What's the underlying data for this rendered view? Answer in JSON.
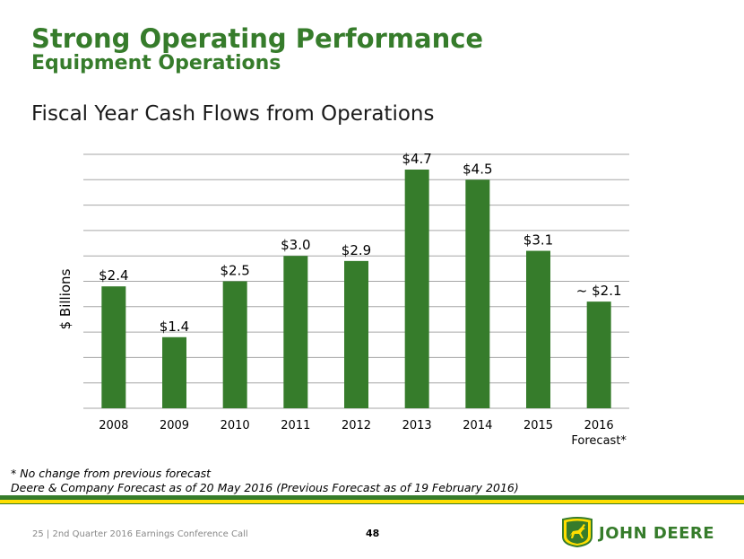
{
  "header": {
    "title": "Strong Operating Performance",
    "subtitle": "Equipment Operations",
    "chart_heading": "Fiscal Year Cash Flows from Operations"
  },
  "chart_data": {
    "type": "bar",
    "title": "Fiscal Year Cash Flows from Operations",
    "xlabel": "",
    "ylabel": "$ Billions",
    "ylim": [
      0,
      5
    ],
    "grid": true,
    "categories": [
      "2008",
      "2009",
      "2010",
      "2011",
      "2012",
      "2013",
      "2014",
      "2015",
      "2016\nForecast*"
    ],
    "values": [
      2.4,
      1.4,
      2.5,
      3.0,
      2.9,
      4.7,
      4.5,
      3.1,
      2.1
    ],
    "data_labels": [
      "$2.4",
      "$1.4",
      "$2.5",
      "$3.0",
      "$2.9",
      "$4.7",
      "$4.5",
      "$3.1",
      "~ $2.1"
    ],
    "bar_color": "#367c2b"
  },
  "notes": {
    "line1": "* No change from previous forecast",
    "line2": "Deere & Company Forecast as of 20 May 2016 (Previous Forecast as of 19 February 2016)"
  },
  "footer": {
    "slide_info": "25  |  2nd Quarter 2016 Earnings Conference Call",
    "page_number": "48",
    "brand": "JOHN DEERE",
    "logo_icon": "deer-logo-icon"
  },
  "colors": {
    "green": "#367c2b",
    "yellow": "#ffde00"
  }
}
